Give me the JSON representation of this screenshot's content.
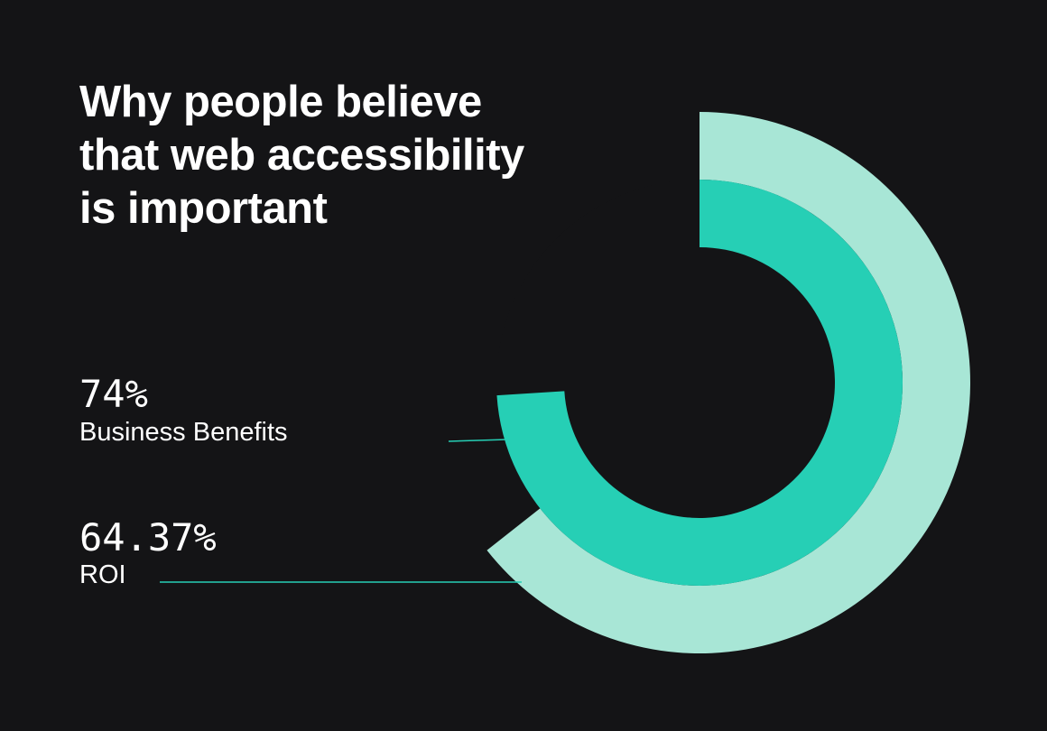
{
  "title_lines": [
    "Why people believe",
    "that web accessibility",
    "is important"
  ],
  "chart_data": {
    "type": "radial-bar",
    "title": "Why people believe that web accessibility is important",
    "series": [
      {
        "label": "ROI",
        "value_text": "64.37%",
        "value": 64.37,
        "color": "#a8e6d6"
      },
      {
        "label": "Business Benefits",
        "value_text": "74%",
        "value": 74,
        "color": "#26cfb5"
      }
    ],
    "leader_color": "#26cfb5"
  }
}
